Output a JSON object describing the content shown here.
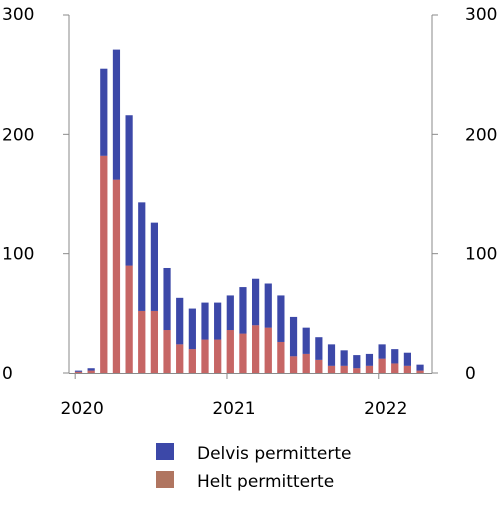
{
  "chart_data": {
    "type": "bar",
    "stacked": true,
    "title": "",
    "xlabel": "",
    "ylabel": "",
    "ylim": [
      0,
      300
    ],
    "y_ticks": [
      "0",
      "100",
      "200",
      "300"
    ],
    "x_tick_labels": [
      "2020",
      "2021",
      "2022"
    ],
    "grid": false,
    "legend_position": "bottom",
    "categories": [
      "2020-01",
      "2020-02",
      "2020-03",
      "2020-04",
      "2020-05",
      "2020-06",
      "2020-07",
      "2020-08",
      "2020-09",
      "2020-10",
      "2020-11",
      "2020-12",
      "2021-01",
      "2021-02",
      "2021-03",
      "2021-04",
      "2021-05",
      "2021-06",
      "2021-07",
      "2021-08",
      "2021-09",
      "2021-10",
      "2021-11",
      "2021-12",
      "2022-01",
      "2022-02",
      "2022-03",
      "2022-04"
    ],
    "series": [
      {
        "name": "Helt permitterte",
        "color": "#e0556a",
        "values": [
          1,
          2,
          182,
          162,
          90,
          52,
          52,
          36,
          24,
          20,
          28,
          28,
          36,
          33,
          40,
          38,
          26,
          14,
          16,
          11,
          6,
          6,
          4,
          6,
          12,
          8,
          6,
          2
        ]
      },
      {
        "name": "Delvis permitterte",
        "color": "#3c48a8",
        "values": [
          1,
          2,
          73,
          109,
          126,
          91,
          74,
          52,
          39,
          34,
          31,
          31,
          29,
          39,
          39,
          37,
          39,
          33,
          22,
          19,
          18,
          13,
          11,
          10,
          12,
          12,
          11,
          5
        ]
      }
    ]
  },
  "legend": {
    "items": [
      {
        "label": "Delvis permitterte",
        "color": "#3c48a8"
      },
      {
        "label": "Helt permitterte",
        "color": "#e0556a"
      }
    ]
  },
  "colors": {
    "axis": "#8a8a8a",
    "overlap": "#b07560"
  }
}
